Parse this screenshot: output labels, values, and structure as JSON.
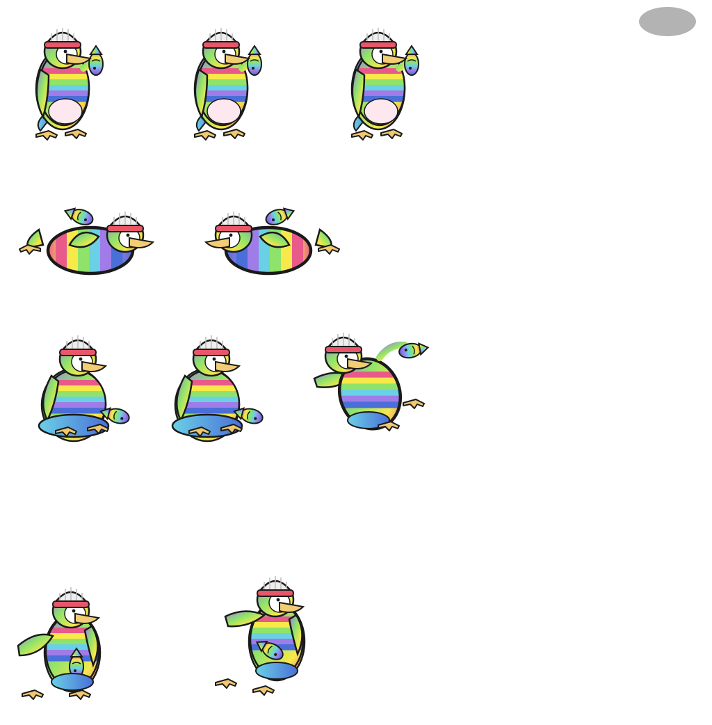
{
  "sheet": {
    "background": "#ffffff",
    "badge_color": "#b3b3b3",
    "palette": {
      "outline": "#1a1a1a",
      "beak": "#f2cd74",
      "feet": "#f0c870",
      "hat": "#eeeeee",
      "hat_band": "#e8566a",
      "face": "#ffffff",
      "stripes": [
        "#e85a8a",
        "#f7e94a",
        "#8fe36a",
        "#6ad0e6",
        "#9f7ce8",
        "#4a6fd8"
      ]
    }
  },
  "rows": [
    {
      "name": "idle-holding-fish",
      "frames": [
        {
          "pose": "stand",
          "mirror": false
        },
        {
          "pose": "stand",
          "mirror": false
        },
        {
          "pose": "stand",
          "mirror": false
        }
      ]
    },
    {
      "name": "belly-slide",
      "frames": [
        {
          "pose": "lie",
          "mirror": false
        },
        {
          "pose": "lie",
          "mirror": true
        }
      ]
    },
    {
      "name": "sit-and-throw",
      "frames": [
        {
          "pose": "sit",
          "mirror": false
        },
        {
          "pose": "sit",
          "mirror": false
        },
        {
          "pose": "throw",
          "mirror": false
        }
      ]
    },
    {
      "name": "walk",
      "frames": [
        {
          "pose": "walk",
          "mirror": false
        },
        {
          "pose": "walk-step",
          "mirror": false
        }
      ]
    }
  ]
}
